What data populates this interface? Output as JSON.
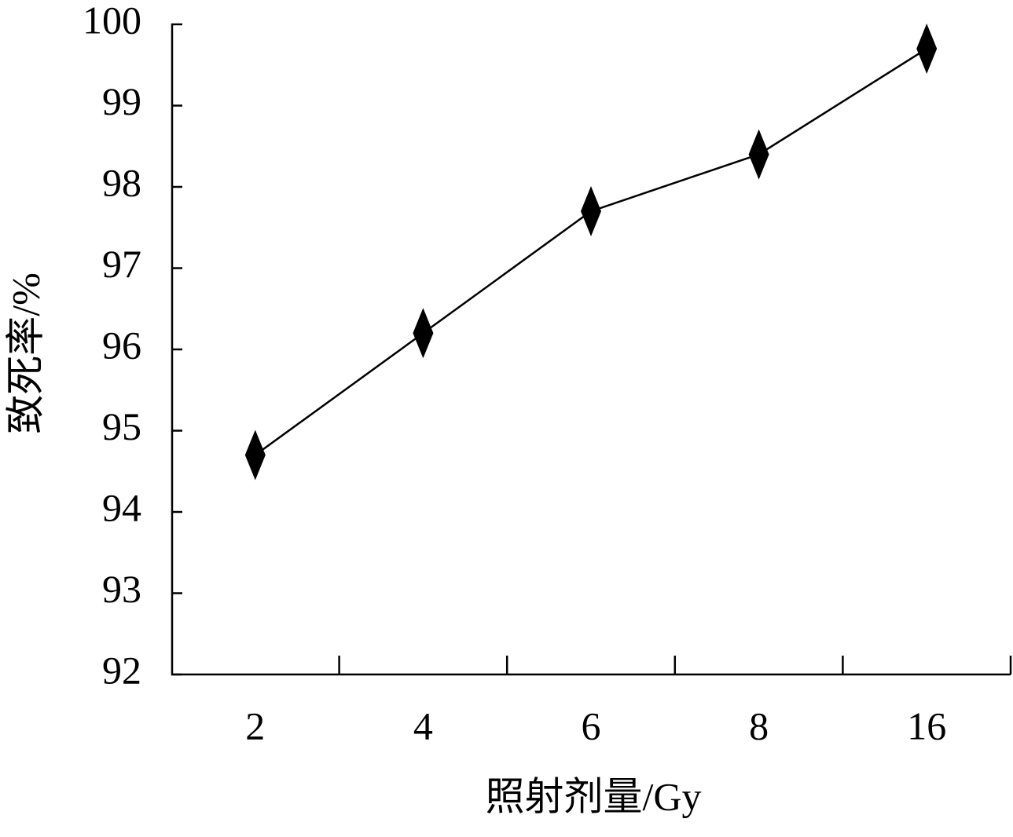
{
  "chart_data": {
    "type": "line",
    "x_label": "照射剂量/Gy",
    "y_label": "致死率/%",
    "categories": [
      "2",
      "4",
      "6",
      "8",
      "16"
    ],
    "series": [
      {
        "name": "致死率",
        "color": "#000000",
        "values": [
          94.7,
          96.2,
          97.7,
          98.4,
          99.7
        ]
      }
    ],
    "ylim": [
      92,
      100
    ],
    "yticks": [
      92,
      93,
      94,
      95,
      96,
      97,
      98,
      99,
      100
    ],
    "grid": false,
    "legend": false
  }
}
